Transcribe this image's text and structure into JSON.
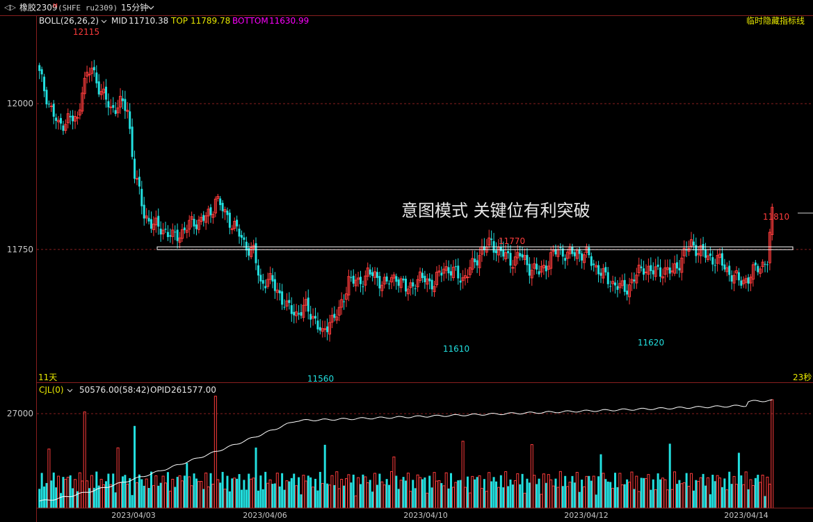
{
  "header": {
    "nav_icon": "back-forward-icon",
    "symbol_name": "橡胶2309",
    "symbol_mark": "M",
    "symbol_code": "(SHFE ru2309)",
    "period": "15分钟",
    "dropdown_icon": "chevron-down-icon"
  },
  "indicator_main": {
    "name": "BOLL(26,26,2)",
    "mid_label": "MID",
    "mid_value": "11710.38",
    "top_label": "TOP",
    "top_value": "11789.78",
    "bottom_label": "BOTTOM",
    "bottom_value": "11630.99",
    "hide_link": "临时隐藏指标线"
  },
  "annotation": {
    "text": "意图模式  关键位有利突破"
  },
  "countdown": {
    "left": "11天",
    "right": "23秒"
  },
  "indicator_sub": {
    "name": "CJL(0)",
    "volume": "50576.00(58:42)",
    "opid_label": "OPID",
    "opid_value": "261577.00"
  },
  "colors": {
    "up": "#ff3c3c",
    "down": "#22e0e0",
    "opid_line": "#ffffff",
    "key_level": "#ffffff",
    "grid": "#8a1f1f",
    "boll_name": "#e8e8e8",
    "top": "#e8e800",
    "bottom": "#ff00ff",
    "label_high": "#ff3c3c",
    "label_low": "#22e0e0"
  },
  "chart_data": [
    {
      "type": "candlestick",
      "price_axis_ticks": [
        12000,
        11750
      ],
      "ylim": [
        11540,
        12130
      ],
      "key_level": 11752,
      "x_dates": [
        "2023/04/03",
        "2023/04/06",
        "2023/04/10",
        "2023/04/12",
        "2023/04/14"
      ],
      "annotations": [
        {
          "text": "12115",
          "value": 12115,
          "kind": "high"
        },
        {
          "text": "11770",
          "value": 11770,
          "kind": "high"
        },
        {
          "text": "11810",
          "value": 11810,
          "kind": "high"
        },
        {
          "text": "11610",
          "value": 11610,
          "kind": "low"
        },
        {
          "text": "11620",
          "value": 11620,
          "kind": "low"
        },
        {
          "text": "11560",
          "value": 11560,
          "kind": "low"
        }
      ],
      "anchors": [
        [
          0,
          12050
        ],
        [
          4,
          12000
        ],
        [
          8,
          11960
        ],
        [
          12,
          11975
        ],
        [
          16,
          11970
        ],
        [
          18,
          12030
        ],
        [
          22,
          12060
        ],
        [
          26,
          12020
        ],
        [
          30,
          11990
        ],
        [
          34,
          12000
        ],
        [
          37,
          11990
        ],
        [
          40,
          11880
        ],
        [
          44,
          11810
        ],
        [
          48,
          11790
        ],
        [
          52,
          11785
        ],
        [
          56,
          11770
        ],
        [
          60,
          11780
        ],
        [
          64,
          11795
        ],
        [
          68,
          11800
        ],
        [
          72,
          11810
        ],
        [
          74,
          11840
        ],
        [
          78,
          11810
        ],
        [
          82,
          11790
        ],
        [
          86,
          11760
        ],
        [
          90,
          11745
        ],
        [
          93,
          11690
        ],
        [
          96,
          11700
        ],
        [
          100,
          11680
        ],
        [
          104,
          11650
        ],
        [
          108,
          11640
        ],
        [
          112,
          11650
        ],
        [
          116,
          11630
        ],
        [
          119,
          11600
        ],
        [
          122,
          11630
        ],
        [
          126,
          11640
        ],
        [
          130,
          11700
        ],
        [
          134,
          11690
        ],
        [
          138,
          11710
        ],
        [
          142,
          11700
        ],
        [
          146,
          11690
        ],
        [
          150,
          11705
        ],
        [
          154,
          11680
        ],
        [
          158,
          11695
        ],
        [
          162,
          11700
        ],
        [
          166,
          11690
        ],
        [
          170,
          11720
        ],
        [
          174,
          11710
        ],
        [
          178,
          11700
        ],
        [
          182,
          11720
        ],
        [
          186,
          11750
        ],
        [
          190,
          11760
        ],
        [
          194,
          11745
        ],
        [
          198,
          11730
        ],
        [
          202,
          11740
        ],
        [
          206,
          11720
        ],
        [
          210,
          11710
        ],
        [
          214,
          11730
        ],
        [
          218,
          11750
        ],
        [
          222,
          11740
        ],
        [
          226,
          11745
        ],
        [
          230,
          11740
        ],
        [
          234,
          11720
        ],
        [
          238,
          11700
        ],
        [
          242,
          11690
        ],
        [
          246,
          11680
        ],
        [
          250,
          11700
        ],
        [
          254,
          11720
        ],
        [
          258,
          11710
        ],
        [
          262,
          11715
        ],
        [
          266,
          11710
        ],
        [
          270,
          11735
        ],
        [
          274,
          11760
        ],
        [
          278,
          11745
        ],
        [
          282,
          11735
        ],
        [
          286,
          11730
        ],
        [
          290,
          11710
        ],
        [
          294,
          11695
        ],
        [
          298,
          11700
        ],
        [
          302,
          11720
        ],
        [
          306,
          11730
        ],
        [
          308,
          11810
        ]
      ],
      "volume_axis_ticks": [
        27000
      ],
      "volume_max": 32000,
      "opid_range": [
        0,
        32000
      ]
    }
  ]
}
